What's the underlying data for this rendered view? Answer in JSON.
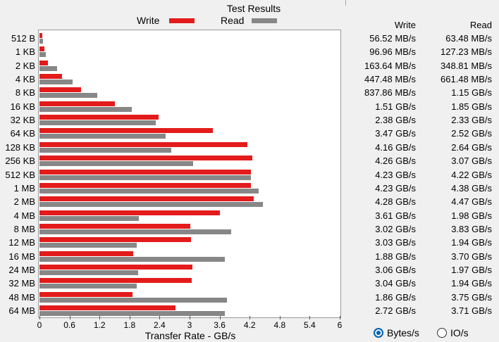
{
  "window": {
    "title": "Test Results"
  },
  "legend": {
    "write_label": "Write",
    "read_label": "Read"
  },
  "colors": {
    "write": "#e31b1b",
    "read": "#878787"
  },
  "table": {
    "write_header": "Write",
    "read_header": "Read"
  },
  "options": {
    "bytes_label": "Bytes/s",
    "io_label": "IO/s",
    "selected": "bytes"
  },
  "chart_data": {
    "type": "bar",
    "orientation": "horizontal",
    "title": "Test Results",
    "xlabel": "Transfer Rate - GB/s",
    "ylabel": "",
    "xlim": [
      0,
      6
    ],
    "xticks": [
      "0",
      "0.6",
      "1.2",
      "1.8",
      "2.4",
      "3",
      "3.6",
      "4.2",
      "4.8",
      "5.4",
      "6"
    ],
    "categories": [
      "512 B",
      "1 KB",
      "2 KB",
      "4 KB",
      "8 KB",
      "16 KB",
      "32 KB",
      "64 KB",
      "128 KB",
      "256 KB",
      "512 KB",
      "1 MB",
      "2 MB",
      "4 MB",
      "8 MB",
      "12 MB",
      "16 MB",
      "24 MB",
      "32 MB",
      "48 MB",
      "64 MB"
    ],
    "series": [
      {
        "name": "Write",
        "values": [
          0.0565,
          0.097,
          0.1636,
          0.4475,
          0.8379,
          1.51,
          2.38,
          3.47,
          4.16,
          4.26,
          4.23,
          4.23,
          4.28,
          3.61,
          3.02,
          3.03,
          1.88,
          3.06,
          3.04,
          1.86,
          2.72
        ],
        "labels": [
          "56.52 MB/s",
          "96.96 MB/s",
          "163.64 MB/s",
          "447.48 MB/s",
          "837.86 MB/s",
          "1.51 GB/s",
          "2.38 GB/s",
          "3.47 GB/s",
          "4.16 GB/s",
          "4.26 GB/s",
          "4.23 GB/s",
          "4.23 GB/s",
          "4.28 GB/s",
          "3.61 GB/s",
          "3.02 GB/s",
          "3.03 GB/s",
          "1.88 GB/s",
          "3.06 GB/s",
          "3.04 GB/s",
          "1.86 GB/s",
          "2.72 GB/s"
        ]
      },
      {
        "name": "Read",
        "values": [
          0.0635,
          0.1272,
          0.3488,
          0.6615,
          1.15,
          1.85,
          2.33,
          2.52,
          2.64,
          3.07,
          4.22,
          4.38,
          4.47,
          1.98,
          3.83,
          1.94,
          3.7,
          1.97,
          1.94,
          3.75,
          3.71
        ],
        "labels": [
          "63.48 MB/s",
          "127.23 MB/s",
          "348.81 MB/s",
          "661.48 MB/s",
          "1.15 GB/s",
          "1.85 GB/s",
          "2.33 GB/s",
          "2.52 GB/s",
          "2.64 GB/s",
          "3.07 GB/s",
          "4.22 GB/s",
          "4.38 GB/s",
          "4.47 GB/s",
          "1.98 GB/s",
          "3.83 GB/s",
          "1.94 GB/s",
          "3.70 GB/s",
          "1.97 GB/s",
          "1.94 GB/s",
          "3.75 GB/s",
          "3.71 GB/s"
        ]
      }
    ]
  }
}
